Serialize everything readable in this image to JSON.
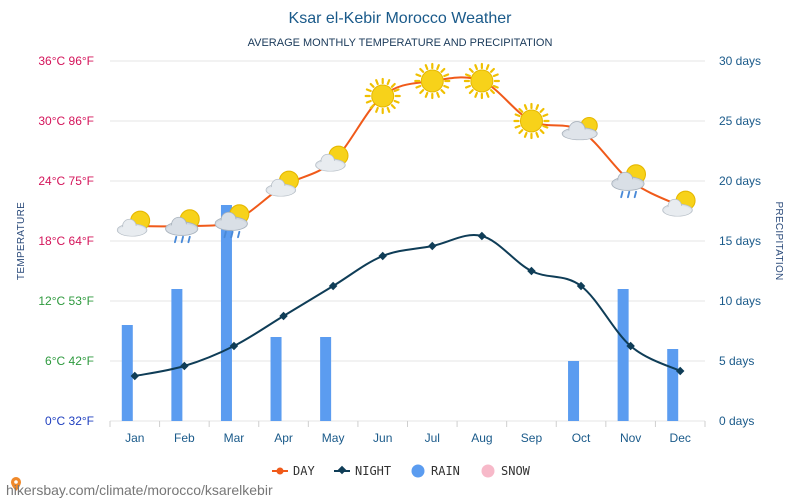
{
  "chart_data": {
    "type": "line",
    "title": "Ksar el-Kebir Morocco Weather",
    "subtitle": "AVERAGE MONTHLY TEMPERATURE AND PRECIPITATION",
    "ylabel": "TEMPERATURE",
    "y2label": "PRECIPITATION",
    "categories": [
      "Jan",
      "Feb",
      "Mar",
      "Apr",
      "May",
      "Jun",
      "Jul",
      "Aug",
      "Sep",
      "Oct",
      "Nov",
      "Dec"
    ],
    "temp_ticks": [
      {
        "c": 0,
        "label": "0°C 32°F",
        "color": "#1f3fbf"
      },
      {
        "c": 6,
        "label": "6°C 42°F",
        "color": "#2e9a3e"
      },
      {
        "c": 12,
        "label": "12°C 53°F",
        "color": "#2e9a3e"
      },
      {
        "c": 18,
        "label": "18°C 64°F",
        "color": "#d4145a"
      },
      {
        "c": 24,
        "label": "24°C 75°F",
        "color": "#d4145a"
      },
      {
        "c": 30,
        "label": "30°C 86°F",
        "color": "#d4145a"
      },
      {
        "c": 36,
        "label": "36°C 96°F",
        "color": "#d4145a"
      }
    ],
    "precip_ticks": [
      {
        "v": 0,
        "label": "0 days"
      },
      {
        "v": 5,
        "label": "5 days"
      },
      {
        "v": 10,
        "label": "10 days"
      },
      {
        "v": 15,
        "label": "15 days"
      },
      {
        "v": 20,
        "label": "20 days"
      },
      {
        "v": 25,
        "label": "25 days"
      },
      {
        "v": 30,
        "label": "30 days"
      }
    ],
    "ylim_temp": [
      0,
      36
    ],
    "ylim_precip": [
      0,
      30
    ],
    "series": [
      {
        "name": "DAY",
        "color": "#f05a1a",
        "values": [
          19.5,
          19.5,
          20,
          23.5,
          26,
          32.5,
          34,
          34,
          30,
          29,
          24,
          21.5
        ]
      },
      {
        "name": "NIGHT",
        "color": "#0f3d57",
        "values": [
          4.5,
          5.5,
          7.5,
          10.5,
          13.5,
          16.5,
          17.5,
          18.5,
          15,
          13.5,
          7.5,
          5
        ]
      },
      {
        "name": "RAIN",
        "color": "#5b9cf0",
        "values": [
          8,
          11,
          18,
          7,
          7,
          0,
          0,
          0,
          0,
          5,
          11,
          6
        ]
      }
    ],
    "legend": [
      {
        "label": "DAY",
        "color": "#f05a1a",
        "marker": "line-circle"
      },
      {
        "label": "NIGHT",
        "color": "#0f3d57",
        "marker": "line-diamond"
      },
      {
        "label": "RAIN",
        "color": "#5b9cf0",
        "marker": "dot"
      },
      {
        "label": "SNOW",
        "color": "#f7b9c9",
        "marker": "dot"
      }
    ],
    "weather_icons": [
      "sun-cloud-icon",
      "sun-cloud-rain-icon",
      "sun-cloud-rain-icon",
      "sun-cloud-icon",
      "sun-cloud-icon",
      "sun-icon",
      "sun-icon",
      "sun-icon",
      "sun-icon",
      "cloud-sun-icon",
      "sun-cloud-rain-icon",
      "sun-cloud-icon"
    ],
    "grid": true,
    "legend_position": "bottom-center"
  },
  "source": "hikersbay.com/climate/morocco/ksarelkebir",
  "colors": {
    "title": "#1a5a8a",
    "right_axis": "#1a5a8a",
    "month_labels": "#1a5a8a",
    "grid": "#e6e6e6",
    "sun": "#f7d21a",
    "cloud": "#d5dbe2",
    "rain_drop": "#4a8ad8"
  }
}
